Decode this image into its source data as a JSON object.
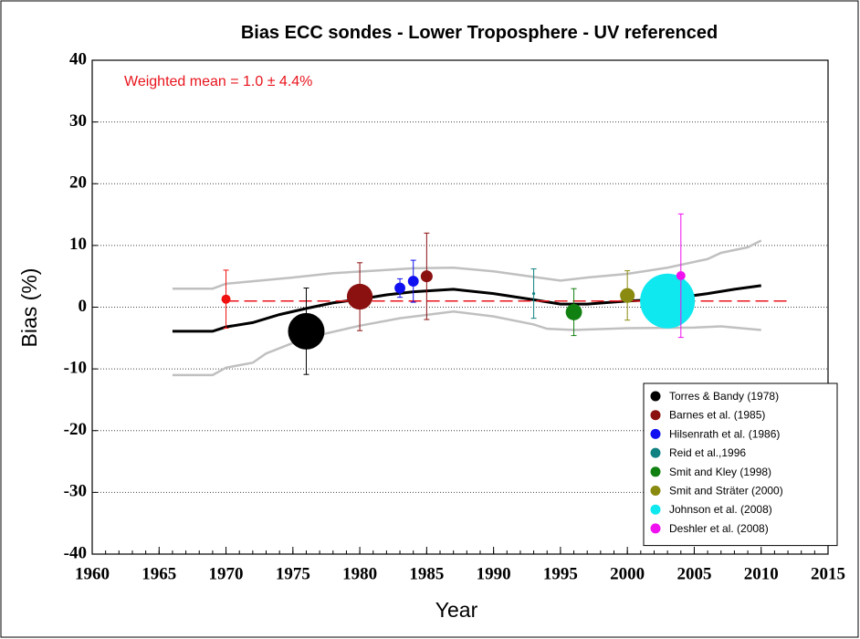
{
  "chart_data": {
    "type": "scatter",
    "title": "Bias ECC sondes - Lower Troposphere - UV referenced",
    "x_label": "Year",
    "y_label": "Bias (%)",
    "annotation": "Weighted mean = 1.0 ± 4.4%",
    "annotation_color": "#e8141c",
    "reference_line": {
      "value": 1.0,
      "x": [
        1970,
        2012
      ],
      "color": "#e8141c"
    },
    "xlim": [
      1960,
      2015
    ],
    "xticks": [
      1960,
      1965,
      1970,
      1975,
      1980,
      1985,
      1990,
      1995,
      2000,
      2005,
      2010,
      2015
    ],
    "ylim": [
      -40,
      40
    ],
    "yticks": [
      -40,
      -30,
      -20,
      -10,
      0,
      10,
      20,
      30,
      40
    ],
    "grid": true,
    "legend": "lower right",
    "series": [
      {
        "color": "#f01010",
        "x": [
          1970
        ],
        "values": [
          1.3
        ],
        "errors": [
          4.7
        ],
        "sizes": [
          1
        ]
      },
      {
        "name": "Torres & Bandy (1978)",
        "color": "#000000",
        "x": [
          1976
        ],
        "values": [
          -3.9
        ],
        "errors": [
          7
        ],
        "sizes": [
          16
        ]
      },
      {
        "name": "Barnes et al. (1985)",
        "color": "#8b1010",
        "x": [
          1980,
          1985
        ],
        "values": [
          1.7,
          5
        ],
        "errors": [
          5.5,
          7
        ],
        "sizes": [
          8,
          1.7
        ]
      },
      {
        "name": "Hilsenrath et al. (1986)",
        "color": "#1010f0",
        "x": [
          1983,
          1984
        ],
        "values": [
          3.1,
          4.2
        ],
        "errors": [
          1.5,
          3.4
        ],
        "sizes": [
          1.4,
          1.4
        ]
      },
      {
        "name": "Reid et al.,1996",
        "color": "#108080",
        "x": [
          1993
        ],
        "values": [
          2.2
        ],
        "errors": [
          4
        ],
        "sizes": [
          0.1
        ]
      },
      {
        "name": "Smit and Kley (1998)",
        "color": "#108010",
        "x": [
          1996
        ],
        "values": [
          -0.8
        ],
        "errors": [
          3.8
        ],
        "sizes": [
          3.2
        ]
      },
      {
        "name": "Smit and Sträter (2000)",
        "color": "#8a8a10",
        "x": [
          2000
        ],
        "values": [
          1.9
        ],
        "errors": [
          4
        ],
        "sizes": [
          2.6
        ]
      },
      {
        "name": "Johnson et al. (2008)",
        "color": "#10e8f0",
        "x": [
          2003
        ],
        "values": [
          1.0
        ],
        "errors": [
          null
        ],
        "sizes": [
          36
        ]
      },
      {
        "name": "Deshler et al. (2008)",
        "color": "#f010f0",
        "x": [
          2004
        ],
        "values": [
          5.1
        ],
        "errors": [
          10
        ],
        "sizes": [
          1
        ]
      }
    ],
    "lines": [
      {
        "color": "#000000",
        "x": [
          1966,
          1969,
          1970,
          1972,
          1974,
          1976,
          1978,
          1980,
          1982,
          1984,
          1987,
          1990,
          1993,
          1995,
          1997,
          2000,
          2003,
          2006,
          2008,
          2010
        ],
        "values": [
          -3.9,
          -3.9,
          -3.2,
          -2.5,
          -1.2,
          -0.2,
          0.7,
          1.3,
          2,
          2.5,
          2.9,
          2.2,
          1.2,
          0.5,
          0.5,
          1,
          1.3,
          2.2,
          2.9,
          3.5
        ]
      },
      {
        "color": "#c0c0c0",
        "x": [
          1966,
          1969,
          1970,
          1972,
          1975,
          1978,
          1981,
          1984,
          1987,
          1990,
          1993,
          1995,
          1997,
          2000,
          2003,
          2006,
          2007,
          2009,
          2010
        ],
        "values": [
          3,
          3,
          3.8,
          4.2,
          4.8,
          5.5,
          5.9,
          6.3,
          6.4,
          5.8,
          4.9,
          4.3,
          4.8,
          5.4,
          6.4,
          7.8,
          8.8,
          9.7,
          10.8
        ]
      },
      {
        "color": "#c0c0c0",
        "x": [
          1966,
          1969,
          1970,
          1972,
          1973,
          1975,
          1977,
          1980,
          1983,
          1987,
          1990,
          1993,
          1994,
          1996,
          2000,
          2005,
          2007,
          2010
        ],
        "values": [
          -11,
          -11,
          -9.8,
          -9,
          -7.5,
          -5.8,
          -4.5,
          -3,
          -1.8,
          -0.7,
          -1.5,
          -2.8,
          -3.5,
          -3.7,
          -3.4,
          -3.3,
          -3.1,
          -3.7
        ]
      }
    ]
  }
}
